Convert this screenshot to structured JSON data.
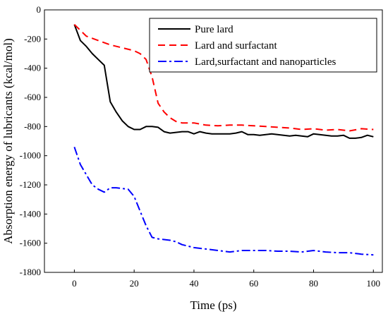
{
  "chart_data": {
    "type": "line",
    "xlabel": "Time (ps)",
    "ylabel": "Absorption energy of lubricants (kcal/mol)",
    "xlim": [
      -10,
      103
    ],
    "ylim": [
      -1800,
      0
    ],
    "xticks": [
      0,
      20,
      40,
      60,
      80,
      100
    ],
    "yticks": [
      0,
      -200,
      -400,
      -600,
      -800,
      -1000,
      -1200,
      -1400,
      -1600,
      -1800
    ],
    "grid": false,
    "legend_position": "top-right",
    "series": [
      {
        "name": "Pure lard",
        "color": "#000000",
        "dash": "solid",
        "x": [
          0,
          2,
          4,
          6,
          8,
          10,
          12,
          14,
          16,
          18,
          20,
          22,
          24,
          26,
          28,
          30,
          32,
          34,
          36,
          38,
          40,
          42,
          44,
          46,
          48,
          50,
          52,
          54,
          56,
          58,
          60,
          62,
          64,
          66,
          68,
          70,
          72,
          74,
          76,
          78,
          80,
          82,
          84,
          86,
          88,
          90,
          92,
          94,
          96,
          98,
          100
        ],
        "y": [
          -100,
          -210,
          -250,
          -300,
          -340,
          -380,
          -630,
          -700,
          -760,
          -800,
          -820,
          -820,
          -800,
          -800,
          -805,
          -835,
          -845,
          -840,
          -835,
          -835,
          -850,
          -835,
          -845,
          -850,
          -850,
          -850,
          -850,
          -845,
          -835,
          -855,
          -855,
          -860,
          -855,
          -850,
          -855,
          -860,
          -865,
          -860,
          -865,
          -870,
          -850,
          -855,
          -860,
          -865,
          -865,
          -860,
          -880,
          -880,
          -875,
          -860,
          -870
        ]
      },
      {
        "name": "Lard and surfactant",
        "color": "#ff0000",
        "dash": "dashed",
        "x": [
          0,
          4,
          8,
          12,
          16,
          20,
          22,
          24,
          26,
          28,
          30,
          32,
          34,
          36,
          40,
          44,
          48,
          52,
          56,
          60,
          64,
          68,
          72,
          76,
          80,
          84,
          88,
          92,
          96,
          100
        ],
        "y": [
          -100,
          -180,
          -210,
          -240,
          -260,
          -280,
          -300,
          -340,
          -460,
          -640,
          -700,
          -740,
          -765,
          -775,
          -775,
          -790,
          -795,
          -790,
          -790,
          -795,
          -800,
          -805,
          -810,
          -820,
          -815,
          -825,
          -820,
          -830,
          -815,
          -820
        ]
      },
      {
        "name": "Lard,surfactant and nanoparticles",
        "color": "#0000ff",
        "dash": "dashdot",
        "x": [
          0,
          2,
          4,
          6,
          8,
          10,
          12,
          14,
          16,
          18,
          20,
          22,
          24,
          26,
          28,
          30,
          32,
          34,
          36,
          38,
          40,
          44,
          48,
          52,
          56,
          60,
          64,
          68,
          72,
          76,
          80,
          84,
          88,
          92,
          96,
          100
        ],
        "y": [
          -940,
          -1060,
          -1130,
          -1200,
          -1230,
          -1250,
          -1220,
          -1220,
          -1225,
          -1230,
          -1280,
          -1380,
          -1480,
          -1560,
          -1570,
          -1575,
          -1580,
          -1590,
          -1610,
          -1620,
          -1630,
          -1640,
          -1650,
          -1660,
          -1650,
          -1650,
          -1650,
          -1655,
          -1655,
          -1660,
          -1650,
          -1660,
          -1665,
          -1665,
          -1675,
          -1680
        ]
      }
    ]
  }
}
